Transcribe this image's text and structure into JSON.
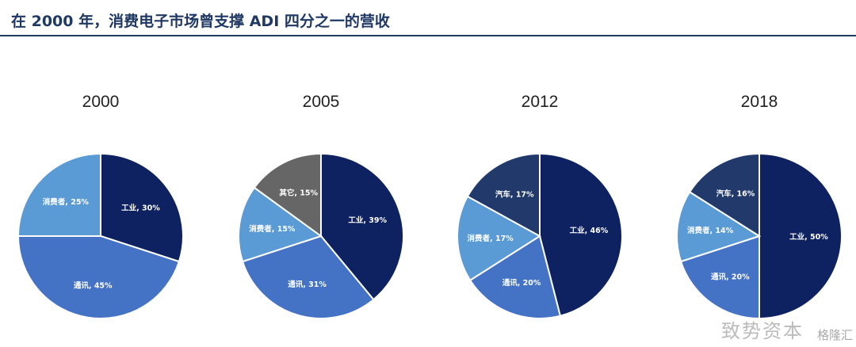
{
  "header": {
    "title": "在 2000 年，消费电子市场曾支撑 ADI 四分之一的营收"
  },
  "watermark": {
    "text": "致势资本",
    "text2": "格隆汇"
  },
  "colors": {
    "工业": "#0e2160",
    "通讯": "#4472c4",
    "消费者": "#5b9bd5",
    "其它": "#666666",
    "汽车": "#213a6b"
  },
  "chart_data": [
    {
      "type": "pie",
      "title": "2000",
      "slices": [
        {
          "label": "工业, 30%",
          "name": "工业",
          "value": 30
        },
        {
          "label": "通讯, 45%",
          "name": "通讯",
          "value": 45
        },
        {
          "label": "消费者, 25%",
          "name": "消费者",
          "value": 25
        }
      ]
    },
    {
      "type": "pie",
      "title": "2005",
      "slices": [
        {
          "label": "工业, 39%",
          "name": "工业",
          "value": 39
        },
        {
          "label": "通讯, 31%",
          "name": "通讯",
          "value": 31
        },
        {
          "label": "消费者, 15%",
          "name": "消费者",
          "value": 15
        },
        {
          "label": "其它, 15%",
          "name": "其它",
          "value": 15
        }
      ]
    },
    {
      "type": "pie",
      "title": "2012",
      "slices": [
        {
          "label": "工业, 46%",
          "name": "工业",
          "value": 46
        },
        {
          "label": "通讯, 20%",
          "name": "通讯",
          "value": 20
        },
        {
          "label": "消费者, 17%",
          "name": "消费者",
          "value": 17
        },
        {
          "label": "汽车, 17%",
          "name": "汽车",
          "value": 17
        }
      ]
    },
    {
      "type": "pie",
      "title": "2018",
      "slices": [
        {
          "label": "工业, 50%",
          "name": "工业",
          "value": 50
        },
        {
          "label": "通讯, 20%",
          "name": "通讯",
          "value": 20
        },
        {
          "label": "消费者, 14%",
          "name": "消费者",
          "value": 14
        },
        {
          "label": "汽车, 16%",
          "name": "汽车",
          "value": 16
        }
      ]
    }
  ]
}
